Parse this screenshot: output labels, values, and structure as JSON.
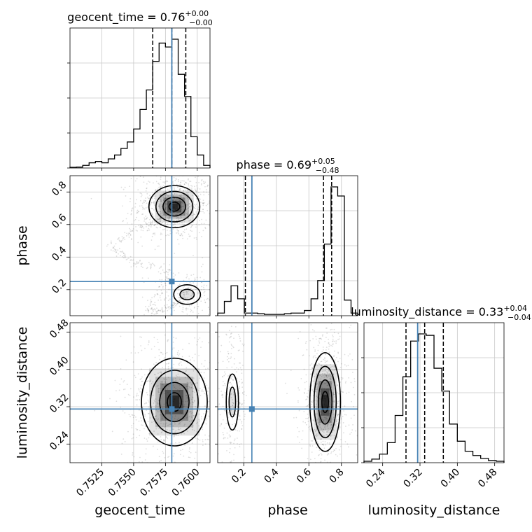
{
  "chart_data": {
    "type": "corner",
    "parameters": [
      {
        "name": "geocent_time",
        "title_name": "geocent_time",
        "median": "0.76",
        "err_plus": "+0.00",
        "err_minus": "−0.00",
        "range": [
          0.75,
          0.761
        ],
        "ticks": [
          0.7525,
          0.755,
          0.7575,
          0.76
        ],
        "tick_labels": [
          "0.7525",
          "0.7550",
          "0.7575",
          "0.7600"
        ],
        "truth": 0.758,
        "quantiles": [
          0.7565,
          0.758,
          0.7591
        ],
        "hist": [
          0.005,
          0.007,
          0.02,
          0.04,
          0.05,
          0.04,
          0.07,
          0.1,
          0.15,
          0.2,
          0.3,
          0.45,
          0.6,
          0.82,
          0.96,
          0.93,
          0.99,
          0.72,
          0.55,
          0.24,
          0.1,
          0.02
        ]
      },
      {
        "name": "phase",
        "title_name": "phase",
        "median": "0.69",
        "err_plus": "+0.05",
        "err_minus": "−0.48",
        "range": [
          0.04,
          0.9
        ],
        "ticks": [
          0.2,
          0.4,
          0.6,
          0.8
        ],
        "tick_labels": [
          "0.2",
          "0.4",
          "0.6",
          "0.8"
        ],
        "truth": 0.25,
        "quantiles": [
          0.21,
          0.69,
          0.74
        ],
        "hist": [
          0.02,
          0.11,
          0.23,
          0.13,
          0.02,
          0.02,
          0.015,
          0.01,
          0.01,
          0.01,
          0.015,
          0.02,
          0.02,
          0.04,
          0.13,
          0.27,
          0.55,
          0.99,
          0.92,
          0.12,
          0.02
        ]
      },
      {
        "name": "luminosity_distance",
        "title_name": "luminosity_distance",
        "median": "0.33",
        "err_plus": "+0.04",
        "err_minus": "−0.04",
        "range": [
          0.2,
          0.5
        ],
        "ticks": [
          0.24,
          0.32,
          0.4,
          0.48
        ],
        "tick_labels": [
          "0.24",
          "0.32",
          "0.40",
          "0.48"
        ],
        "truth": 0.315,
        "quantiles": [
          0.29,
          0.33,
          0.37
        ],
        "hist": [
          0.01,
          0.025,
          0.06,
          0.14,
          0.33,
          0.6,
          0.85,
          0.9,
          0.89,
          0.66,
          0.5,
          0.27,
          0.15,
          0.08,
          0.05,
          0.03,
          0.015,
          0.01
        ]
      }
    ],
    "pairs": [
      {
        "x": "geocent_time",
        "y": "phase",
        "modes": [
          {
            "cx": 0.7582,
            "cy": 0.71,
            "sx": 0.00085,
            "sy": 0.055,
            "w": 1.0
          },
          {
            "cx": 0.7592,
            "cy": 0.17,
            "sx": 0.0007,
            "sy": 0.04,
            "w": 0.22
          }
        ],
        "bridge": [
          [
            0.7592,
            0.15
          ],
          [
            0.7575,
            0.08
          ],
          [
            0.756,
            0.06
          ],
          [
            0.758,
            0.32
          ],
          [
            0.755,
            0.37
          ],
          [
            0.753,
            0.47
          ],
          [
            0.7555,
            0.58
          ],
          [
            0.7572,
            0.63
          ]
        ]
      },
      {
        "x": "geocent_time",
        "y": "luminosity_distance",
        "modes": [
          {
            "cx": 0.7582,
            "cy": 0.33,
            "sx": 0.0011,
            "sy": 0.04,
            "w": 1.0
          }
        ],
        "bridge": []
      },
      {
        "x": "phase",
        "y": "luminosity_distance",
        "modes": [
          {
            "cx": 0.7,
            "cy": 0.33,
            "sx": 0.04,
            "sy": 0.045,
            "w": 1.0
          },
          {
            "cx": 0.13,
            "cy": 0.33,
            "sx": 0.025,
            "sy": 0.04,
            "w": 0.28
          }
        ],
        "bridge": []
      }
    ],
    "truth_color": "#4682b4",
    "grid": true
  }
}
